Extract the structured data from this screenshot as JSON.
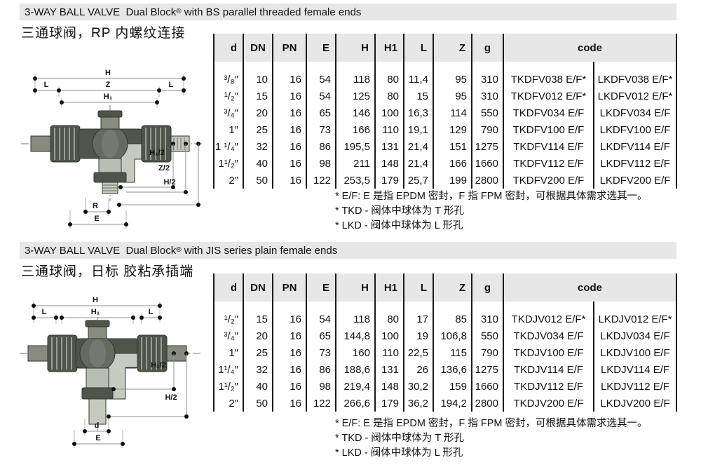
{
  "colors": {
    "bar_bg": "#e7e7e7",
    "table_header_bg": "#e7e7e7",
    "border": "#1a1a1a",
    "text": "#111111",
    "dim_line": "#8f8f8f",
    "valve_dark": "#50554b",
    "valve_mid": "#878c7e",
    "valve_light": "#c6cabf"
  },
  "sections": [
    {
      "title": {
        "main": "3-WAY BALL VALVE  Dual Block",
        "reg": "®",
        "rest": " with BS parallel threaded female ends"
      },
      "subtitle_cn": "三通球阀，RP 内螺纹连接",
      "diagram": {
        "H": "H",
        "Z": "Z",
        "H1": "H₁",
        "L_left": "L",
        "L_right": "L",
        "H1_2": "H₁/2",
        "Z_2": "Z/2",
        "H_2": "H/2",
        "R": "R",
        "E": "E"
      },
      "table": {
        "headers": [
          "d",
          "DN",
          "PN",
          "E",
          "H",
          "H1",
          "L",
          "Z",
          "g",
          "code"
        ],
        "rows": [
          [
            "³/₈″",
            "10",
            "16",
            "54",
            "118",
            "80",
            "11,4",
            "95",
            "310",
            "TKDFV038 E/F*",
            "LKDFV038 E/F*"
          ],
          [
            "¹/₂″",
            "15",
            "16",
            "54",
            "125",
            "80",
            "15",
            "95",
            "310",
            "TKDFV012 E/F*",
            "LKDFV012 E/F*"
          ],
          [
            "³/₄″",
            "20",
            "16",
            "65",
            "146",
            "100",
            "16,3",
            "114",
            "550",
            "TKDFV034 E/F",
            "LKDFV034 E/F"
          ],
          [
            "1″",
            "25",
            "16",
            "73",
            "166",
            "110",
            "19,1",
            "129",
            "790",
            "TKDFV100 E/F",
            "LKDFV100 E/F"
          ],
          [
            "1 ¹/₄″",
            "32",
            "16",
            "86",
            "195,5",
            "131",
            "21,4",
            "151",
            "1275",
            "TKDFV114 E/F",
            "LKDFV114 E/F"
          ],
          [
            "1¹/₂″",
            "40",
            "16",
            "98",
            "211",
            "148",
            "21,4",
            "166",
            "1660",
            "TKDFV112 E/F",
            "LKDFV112 E/F"
          ],
          [
            "2″",
            "50",
            "16",
            "122",
            "253,5",
            "179",
            "25,7",
            "199",
            "2800",
            "TKDFV200 E/F",
            "LKDFV200 E/F"
          ]
        ]
      },
      "footnotes": [
        "* E/F: E 是指 EPDM 密封，F 指 FPM 密封，可根据具体需求选其一。",
        "* TKD - 阀体中球体为 T 形孔",
        "* LKD - 阀体中球体为 L 形孔"
      ]
    },
    {
      "title": {
        "main": "3-WAY BALL VALVE  Dual Block",
        "reg": "®",
        "rest": " with JIS series plain female ends"
      },
      "subtitle_cn": "三通球阀，日标 胶粘承插端",
      "diagram": {
        "H": "H",
        "H1": "H₁",
        "L_left": "L",
        "L_right": "L",
        "H1_2": "H₁/2",
        "H_2": "H/2",
        "d": "d",
        "E": "E"
      },
      "table": {
        "headers": [
          "d",
          "DN",
          "PN",
          "E",
          "H",
          "H1",
          "L",
          "Z",
          "g",
          "code"
        ],
        "rows": [
          [
            "¹/₂″",
            "15",
            "16",
            "54",
            "118",
            "80",
            "17",
            "85",
            "310",
            "TKDJV012 E/F*",
            "LKDJV012 E/F*"
          ],
          [
            "³/₄″",
            "20",
            "16",
            "65",
            "144,8",
            "100",
            "19",
            "106,8",
            "550",
            "TKDJV034 E/F",
            "LKDJV034 E/F"
          ],
          [
            "1″",
            "25",
            "16",
            "73",
            "160",
            "110",
            "22,5",
            "115",
            "790",
            "TKDJV100 E/F",
            "LKDJV100 E/F"
          ],
          [
            "1¹/₄″",
            "32",
            "16",
            "86",
            "188,6",
            "131",
            "26",
            "136,6",
            "1275",
            "TKDJV114 E/F",
            "LKDJV114 E/F"
          ],
          [
            "1¹/₂″",
            "40",
            "16",
            "98",
            "219,4",
            "148",
            "30,2",
            "159",
            "1660",
            "TKDJV112 E/F",
            "LKDJV112 E/F"
          ],
          [
            "2″",
            "50",
            "16",
            "122",
            "266,6",
            "179",
            "36,2",
            "194,2",
            "2800",
            "TKDJV200 E/F",
            "LKDJV200 E/F"
          ]
        ]
      },
      "footnotes": [
        "* E/F: E 是指 EPDM 密封，F 指 FPM 密封，可根据具体需求选其一。",
        "* TKD - 阀体中球体为 T 形孔",
        "* LKD - 阀体中球体为 L 形孔"
      ]
    }
  ]
}
